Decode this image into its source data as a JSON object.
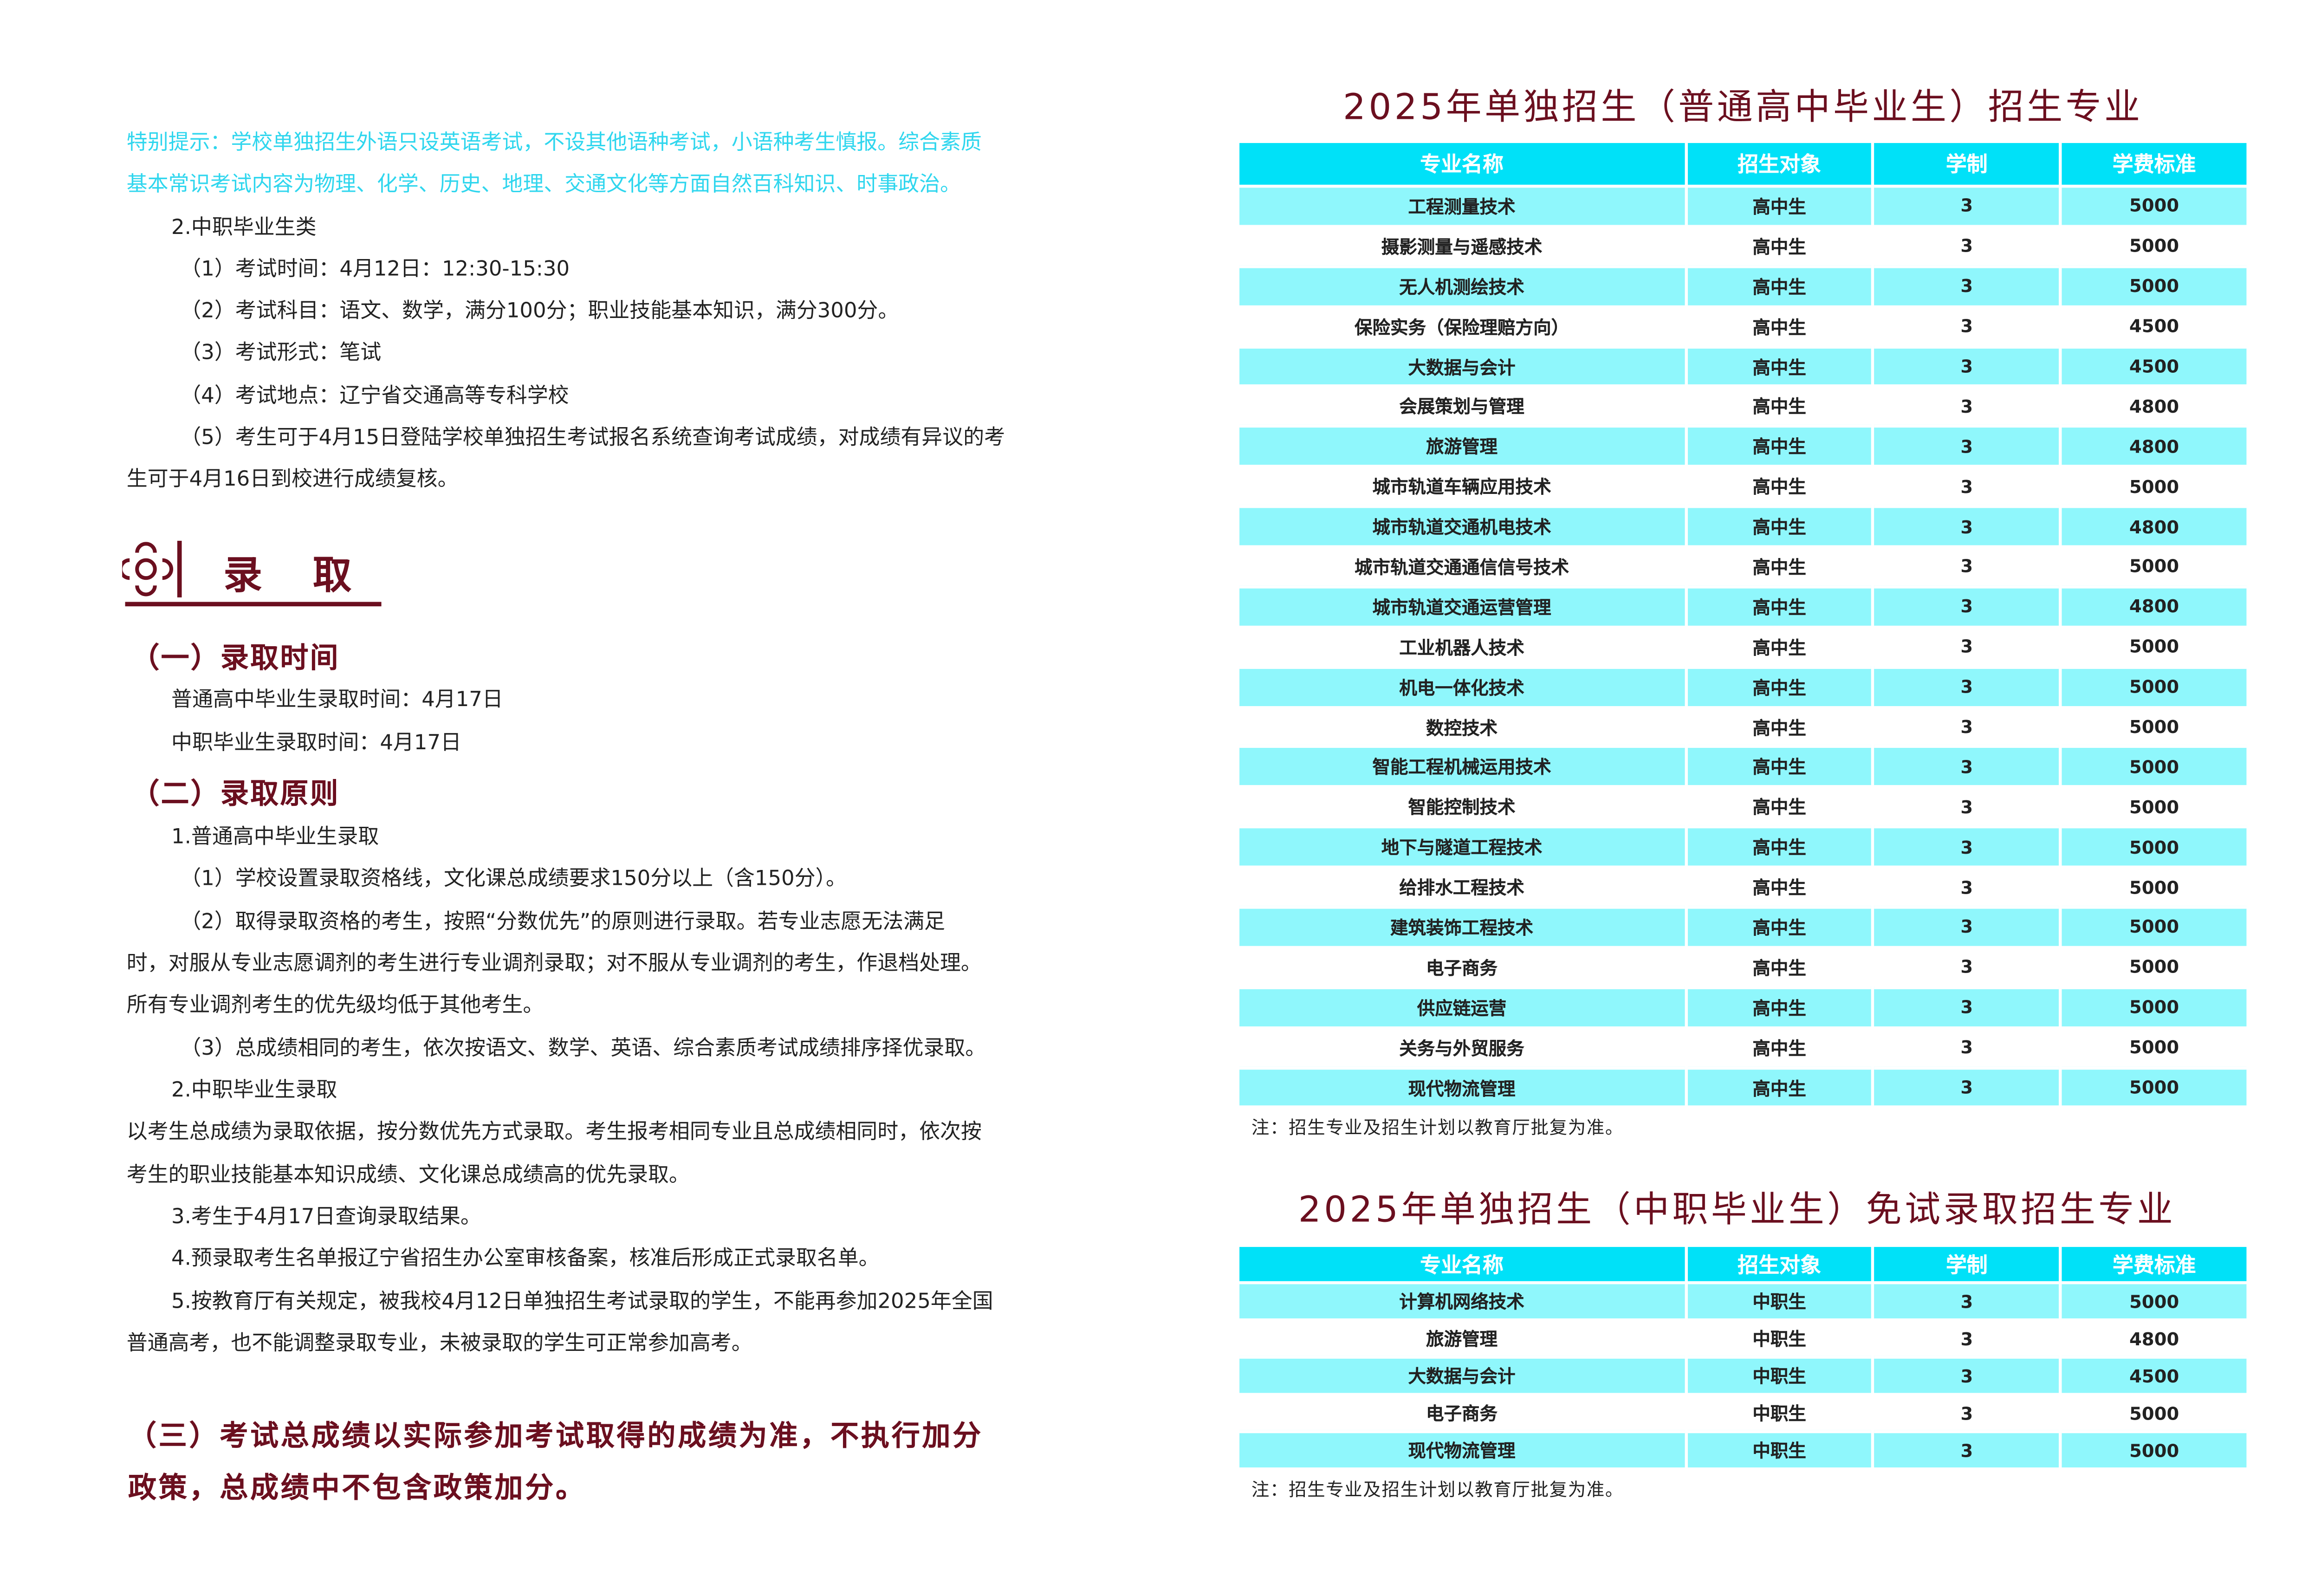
{
  "left": {
    "notice": [
      "特别提示：学校单独招生外语只设英语考试，不设其他语种考试，小语种考生慎报。综合素质",
      "基本常识考试内容为物理、化学、历史、地理、交通文化等方面自然百科知识、时事政治。"
    ],
    "vocational_heading": "2.中职毕业生类",
    "exam_items": [
      "（1）考试时间：4月12日：12:30-15:30",
      "（2）考试科目：语文、数学，满分100分；职业技能基本知识，满分300分。",
      "（3）考试形式：笔试",
      "（4）考试地点：辽宁省交通高等专科学校",
      "（5）考生可于4月15日登陆学校单独招生考试报名系统查询考试成绩，对成绩有异议的考"
    ],
    "exam_item5_cont": "生可于4月16日到校进行成绩复核。",
    "section_title": "录　取",
    "sub1_title": "（一）录取时间",
    "sub1_lines": [
      "普通高中毕业生录取时间：4月17日",
      "中职毕业生录取时间：4月17日"
    ],
    "sub2_title": "（二）录取原则",
    "p_h1": "1.普通高中毕业生录取",
    "p_1": "（1）学校设置录取资格线，文化课总成绩要求150分以上（含150分）。",
    "p_2a": "（2）取得录取资格的考生，按照“分数优先”的原则进行录取。若专业志愿无法满足",
    "p_2b": "时，对服从专业志愿调剂的考生进行专业调剂录取；对不服从专业调剂的考生，作退档处理。",
    "p_2c": "所有专业调剂考生的优先级均低于其他考生。",
    "p_3": "（3）总成绩相同的考生，依次按语文、数学、英语、综合素质考试成绩排序择优录取。",
    "p_h2": "2.中职毕业生录取",
    "p_4a": "以考生总成绩为录取依据，按分数优先方式录取。考生报考相同专业且总成绩相同时，依次按",
    "p_4b": "考生的职业技能基本知识成绩、文化课总成绩高的优先录取。",
    "p_5": "3.考生于4月17日查询录取结果。",
    "p_6": "4.预录取考生名单报辽宁省招生办公室审核备案，核准后形成正式录取名单。",
    "p_7a": "5.按教育厅有关规定，被我校4月12日单独招生考试录取的学生，不能再参加2025年全国",
    "p_7b": "普通高考，也不能调整录取专业，未被录取的学生可正常参加高考。",
    "sub3_a": "（三）考试总成绩以实际参加考试取得的成绩为准，不执行加分",
    "sub3_b": "政策，总成绩中不包含政策加分。"
  },
  "table1": {
    "title": "2025年单独招生（普通高中毕业生）招生专业",
    "headers": [
      "专业名称",
      "招生对象",
      "学制",
      "学费标准"
    ],
    "rows": [
      [
        "工程测量技术",
        "高中生",
        "3",
        "5000"
      ],
      [
        "摄影测量与遥感技术",
        "高中生",
        "3",
        "5000"
      ],
      [
        "无人机测绘技术",
        "高中生",
        "3",
        "5000"
      ],
      [
        "保险实务（保险理赔方向）",
        "高中生",
        "3",
        "4500"
      ],
      [
        "大数据与会计",
        "高中生",
        "3",
        "4500"
      ],
      [
        "会展策划与管理",
        "高中生",
        "3",
        "4800"
      ],
      [
        "旅游管理",
        "高中生",
        "3",
        "4800"
      ],
      [
        "城市轨道车辆应用技术",
        "高中生",
        "3",
        "5000"
      ],
      [
        "城市轨道交通机电技术",
        "高中生",
        "3",
        "4800"
      ],
      [
        "城市轨道交通通信信号技术",
        "高中生",
        "3",
        "5000"
      ],
      [
        "城市轨道交通运营管理",
        "高中生",
        "3",
        "4800"
      ],
      [
        "工业机器人技术",
        "高中生",
        "3",
        "5000"
      ],
      [
        "机电一体化技术",
        "高中生",
        "3",
        "5000"
      ],
      [
        "数控技术",
        "高中生",
        "3",
        "5000"
      ],
      [
        "智能工程机械运用技术",
        "高中生",
        "3",
        "5000"
      ],
      [
        "智能控制技术",
        "高中生",
        "3",
        "5000"
      ],
      [
        "地下与隧道工程技术",
        "高中生",
        "3",
        "5000"
      ],
      [
        "给排水工程技术",
        "高中生",
        "3",
        "5000"
      ],
      [
        "建筑装饰工程技术",
        "高中生",
        "3",
        "5000"
      ],
      [
        "电子商务",
        "高中生",
        "3",
        "5000"
      ],
      [
        "供应链运营",
        "高中生",
        "3",
        "5000"
      ],
      [
        "关务与外贸服务",
        "高中生",
        "3",
        "5000"
      ],
      [
        "现代物流管理",
        "高中生",
        "3",
        "5000"
      ]
    ],
    "note": "注：招生专业及招生计划以教育厅批复为准。"
  },
  "table2": {
    "title": "2025年单独招生（中职毕业生）免试录取招生专业",
    "headers": [
      "专业名称",
      "招生对象",
      "学制",
      "学费标准"
    ],
    "rows": [
      [
        "计算机网络技术",
        "中职生",
        "3",
        "5000"
      ],
      [
        "旅游管理",
        "中职生",
        "3",
        "4800"
      ],
      [
        "大数据与会计",
        "中职生",
        "3",
        "4500"
      ],
      [
        "电子商务",
        "中职生",
        "3",
        "5000"
      ],
      [
        "现代物流管理",
        "中职生",
        "3",
        "5000"
      ]
    ],
    "note": "注：招生专业及招生计划以教育厅批复为准。"
  },
  "colors": {
    "accent": "#6b0f1f",
    "notice": "#2fd6ee",
    "header_bg": "#00e1f8",
    "row_alt": "#8ff7fc"
  },
  "icons": {
    "section": "flower-ornament-icon"
  }
}
